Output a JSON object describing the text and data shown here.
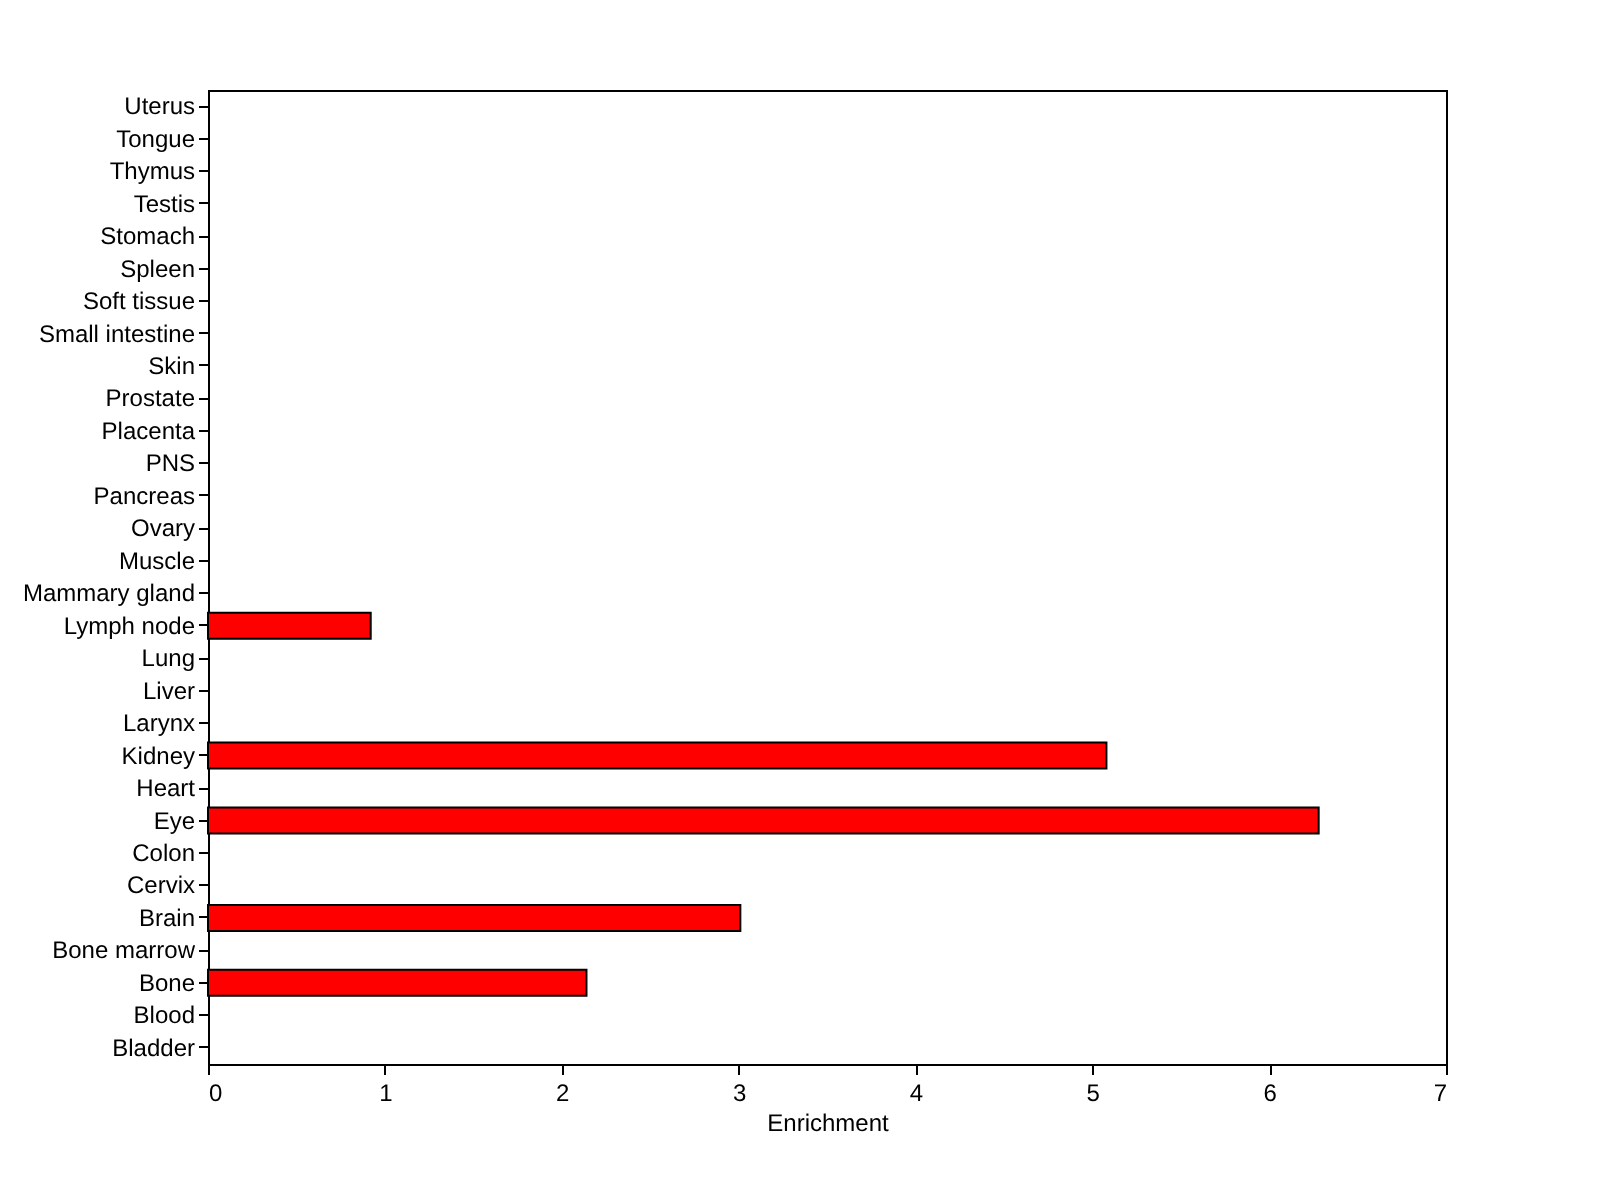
{
  "chart_data": {
    "type": "bar",
    "orientation": "horizontal",
    "xlabel": "Enrichment",
    "categories": [
      "Uterus",
      "Tongue",
      "Thymus",
      "Testis",
      "Stomach",
      "Spleen",
      "Soft tissue",
      "Small intestine",
      "Skin",
      "Prostate",
      "Placenta",
      "PNS",
      "Pancreas",
      "Ovary",
      "Muscle",
      "Mammary gland",
      "Lymph node",
      "Lung",
      "Liver",
      "Larynx",
      "Kidney",
      "Heart",
      "Eye",
      "Colon",
      "Cervix",
      "Brain",
      "Bone marrow",
      "Bone",
      "Blood",
      "Bladder"
    ],
    "values": [
      null,
      null,
      null,
      null,
      null,
      null,
      null,
      null,
      null,
      null,
      null,
      null,
      null,
      null,
      null,
      null,
      0.92,
      null,
      null,
      null,
      5.08,
      null,
      6.28,
      null,
      null,
      3.01,
      null,
      2.14,
      null,
      null
    ],
    "color": "#ff0000",
    "xlim": [
      0,
      7
    ],
    "xticks": [
      0,
      1,
      2,
      3,
      4,
      5,
      6,
      7
    ],
    "grid": false
  }
}
